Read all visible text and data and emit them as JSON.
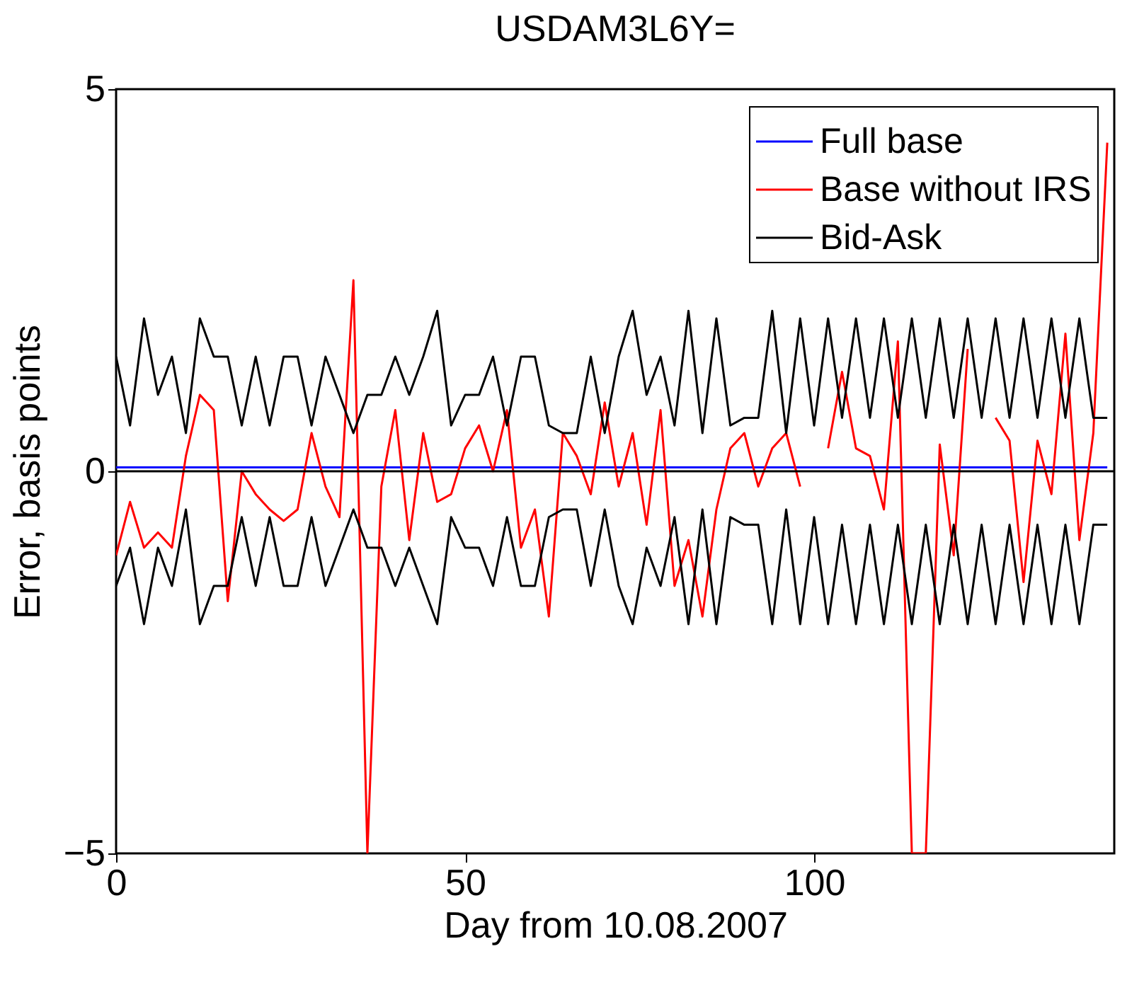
{
  "chart_data": {
    "type": "line",
    "title": "USDAM3L6Y=",
    "xlabel": "Day from 10.08.2007",
    "ylabel": "Error, basis points",
    "x": [
      0,
      2,
      4,
      6,
      8,
      10,
      12,
      14,
      16,
      18,
      20,
      22,
      24,
      26,
      28,
      30,
      32,
      34,
      36,
      38,
      40,
      42,
      44,
      46,
      48,
      50,
      52,
      54,
      56,
      58,
      60,
      62,
      64,
      66,
      68,
      70,
      72,
      74,
      76,
      78,
      80,
      82,
      84,
      86,
      88,
      90,
      92,
      94,
      96,
      98,
      100,
      102,
      104,
      106,
      108,
      110,
      112,
      114,
      116,
      118,
      120,
      122,
      124,
      126,
      128,
      130,
      132,
      134,
      136,
      138,
      140,
      142
    ],
    "series": [
      {
        "name": "Full base",
        "color": "#0000ff",
        "values": [
          0.05,
          0.05,
          0.05,
          0.05,
          0.05,
          0.05,
          0.05,
          0.05,
          0.05,
          0.05,
          0.05,
          0.05,
          0.05,
          0.05,
          0.05,
          0.05,
          0.05,
          0.05,
          0.05,
          0.05,
          0.05,
          0.05,
          0.05,
          0.05,
          0.05,
          0.05,
          0.05,
          0.05,
          0.05,
          0.05,
          0.05,
          0.05,
          0.05,
          0.05,
          0.05,
          0.05,
          0.05,
          0.05,
          0.05,
          0.05,
          0.05,
          0.05,
          0.05,
          0.05,
          0.05,
          0.05,
          0.05,
          0.05,
          0.05,
          0.05,
          0.05,
          0.05,
          0.05,
          0.05,
          0.05,
          0.05,
          0.05,
          0.05,
          0.05,
          0.05,
          0.05,
          0.05,
          0.05,
          0.05,
          0.05,
          0.05,
          0.05,
          0.05,
          0.05,
          0.05,
          0.05,
          0.05
        ]
      },
      {
        "name": "Base without IRS",
        "color": "#ff0000",
        "values": [
          -1.1,
          -0.4,
          -1.0,
          -0.8,
          -1.0,
          0.2,
          1.0,
          0.8,
          -1.7,
          0.0,
          -0.3,
          -0.5,
          -0.65,
          -0.5,
          0.5,
          -0.2,
          -0.6,
          2.5,
          -5,
          -0.2,
          0.8,
          -0.9,
          0.5,
          -0.4,
          -0.3,
          0.3,
          0.6,
          0.0,
          0.8,
          -1.0,
          -0.5,
          -1.9,
          0.5,
          0.2,
          -0.3,
          0.9,
          -0.2,
          0.5,
          -0.7,
          0.8,
          -1.5,
          -0.9,
          -1.9,
          -0.5,
          0.3,
          0.5,
          -0.2,
          0.3,
          0.5,
          -0.2,
          null,
          0.3,
          1.3,
          0.3,
          0.2,
          -0.5,
          1.7,
          -5,
          -5,
          0.35,
          -1.1,
          1.6,
          null,
          0.7,
          0.4,
          -1.45,
          0.4,
          -0.3,
          1.8,
          -0.9,
          0.5,
          4.3
        ]
      },
      {
        "name": "Bid-Ask",
        "color": "#000000",
        "values": [
          1.5,
          0.6,
          2.0,
          1.0,
          1.5,
          0.5,
          2.0,
          1.5,
          1.5,
          0.6,
          1.5,
          0.6,
          1.5,
          1.5,
          0.6,
          1.5,
          1.0,
          0.5,
          1.0,
          1.0,
          1.5,
          1.0,
          1.5,
          2.1,
          0.6,
          1.0,
          1.0,
          1.5,
          0.6,
          1.5,
          1.5,
          0.6,
          0.5,
          0.5,
          1.5,
          0.5,
          1.5,
          2.1,
          1.0,
          1.5,
          0.6,
          2.1,
          0.5,
          2.0,
          0.6,
          0.7,
          0.7,
          2.1,
          0.5,
          2.0,
          0.6,
          2.0,
          0.7,
          2.0,
          0.7,
          2.0,
          0.7,
          2.0,
          0.7,
          2.0,
          0.7,
          2.0,
          0.7,
          2.0,
          0.7,
          2.0,
          0.7,
          2.0,
          0.7,
          2.0,
          0.7,
          0.7
        ]
      },
      {
        "color": "#000000",
        "values": [
          -1.5,
          -1.0,
          -2.0,
          -1.0,
          -1.5,
          -0.5,
          -2.0,
          -1.5,
          -1.5,
          -0.6,
          -1.5,
          -0.6,
          -1.5,
          -1.5,
          -0.6,
          -1.5,
          -1.0,
          -0.5,
          -1.0,
          -1.0,
          -1.5,
          -1.0,
          -1.5,
          -2.0,
          -0.6,
          -1.0,
          -1.0,
          -1.5,
          -0.6,
          -1.5,
          -1.5,
          -0.6,
          -0.5,
          -0.5,
          -1.5,
          -0.5,
          -1.5,
          -2.0,
          -1.0,
          -1.5,
          -0.6,
          -2.0,
          -0.5,
          -2.0,
          -0.6,
          -0.7,
          -0.7,
          -2.0,
          -0.5,
          -2.0,
          -0.6,
          -2.0,
          -0.7,
          -2.0,
          -0.7,
          -2.0,
          -0.7,
          -2.0,
          -0.7,
          -2.0,
          -0.7,
          -2.0,
          -0.7,
          -2.0,
          -0.7,
          -2.0,
          -0.7,
          -2.0,
          -0.7,
          -2.0,
          -0.7,
          -0.7
        ]
      }
    ],
    "xlim": [
      0,
      143
    ],
    "xticks": [
      0,
      50,
      100
    ],
    "ylim": [
      -5,
      5
    ],
    "yticks": [
      -5,
      0,
      5
    ],
    "ref_lines": [
      {
        "axis": "y",
        "value": 0,
        "color": "#000000"
      }
    ],
    "legend": "top right"
  }
}
